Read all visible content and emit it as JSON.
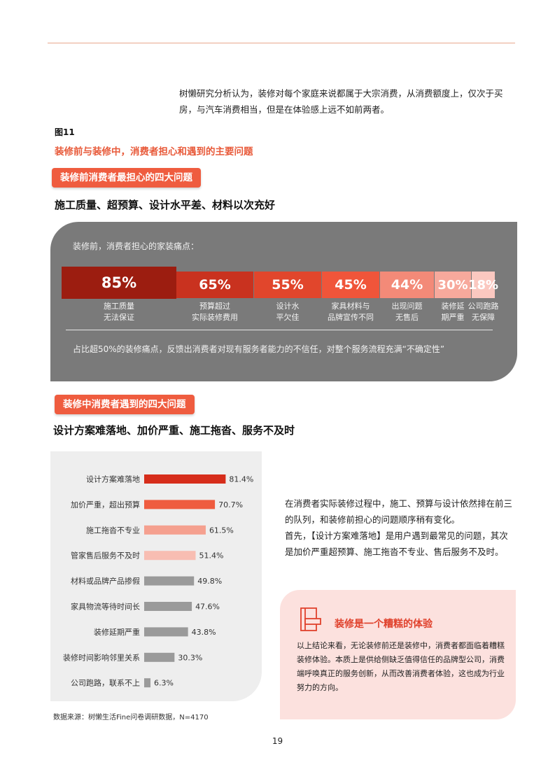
{
  "intro": "树懒研究分析认为，装修对每个家庭来说都属于大宗消费，从消费额度上，仅次于买房，与汽车消费相当，但是在体验感上远不如前两者。",
  "figure": {
    "label": "图11",
    "title": "装修前与装修中，消费者担心和遇到的主要问题"
  },
  "section1": {
    "tag": "装修前消费者最担心的四大问题",
    "heading": "施工质量、超预算、设计水平差、材料以次充好",
    "panel_label": "装修前，消费者担心的家装痛点：",
    "segments": [
      {
        "pct": "85%",
        "value": 85,
        "caption": [
          "施工质量",
          "无法保证"
        ],
        "color": "#9c1d10"
      },
      {
        "pct": "65%",
        "value": 65,
        "caption": [
          "预算超过",
          "实际装修费用"
        ],
        "color": "#c9321f"
      },
      {
        "pct": "55%",
        "value": 55,
        "caption": [
          "设计水",
          "平欠佳"
        ],
        "color": "#e1462c"
      },
      {
        "pct": "45%",
        "value": 45,
        "caption": [
          "家具材料与",
          "品牌宣传不同"
        ],
        "color": "#f0553a"
      },
      {
        "pct": "44%",
        "value": 44,
        "caption": [
          "出现问题",
          "无售后"
        ],
        "color": "#f38a78"
      },
      {
        "pct": "30%",
        "value": 30,
        "caption": [
          "装修延",
          "期严重"
        ],
        "color": "#f7a99c"
      },
      {
        "pct": "18%",
        "value": 18,
        "caption": [
          "公司跑路",
          "无保障"
        ],
        "color": "#fbc8c0"
      }
    ],
    "note": "占比超50%的装修痛点，反馈出消费者对现有服务者能力的不信任，对整个服务流程充满“不确定性”"
  },
  "section2": {
    "tag": "装修中消费者遇到的四大问题",
    "heading": "设计方案难落地、加价严重、施工拖沓、服务不及时",
    "chart_data": {
      "type": "bar",
      "orientation": "horizontal",
      "categories": [
        "设计方案难落地",
        "加价严重，超出预算",
        "施工拖沓不专业",
        "管家售后服务不及时",
        "材料或品牌产品掺假",
        "家具物流等待时间长",
        "装修延期严重",
        "装修时间影响邻里关系",
        "公司跑路，联系不上"
      ],
      "values": [
        81.4,
        70.7,
        61.5,
        51.4,
        49.8,
        47.6,
        43.8,
        30.3,
        6.3
      ],
      "labels": [
        "81.4%",
        "70.7%",
        "61.5%",
        "51.4%",
        "49.8%",
        "47.6%",
        "43.8%",
        "30.3%",
        "6.3%"
      ],
      "colors": [
        "#d62d1b",
        "#ef5c3f",
        "#f5a08f",
        "#f8bdb2",
        "#9a9a9a",
        "#9a9a9a",
        "#9a9a9a",
        "#9a9a9a",
        "#9a9a9a"
      ]
    },
    "right_text": [
      "在消费者实际装修过程中，施工、预算与设计依然排在前三的队列，和装修前担心的问题顺序稍有变化。",
      "首先，【设计方案难落地】是用户遇到最常见的问题，其次是加价严重超预算、施工拖沓不专业、售后服务不及时。"
    ],
    "callout": {
      "icon": "document-icon",
      "title": "装修是一个糟糕的体验",
      "body": "以上结论来看，无论装修前还是装修中，消费者都面临着糟糕装修体验。本质上是供给侧缺乏值得信任的品牌型公司，消费端呼唤真正的服务创新，从而改善消费者体验，这也成为行业努力的方向。"
    }
  },
  "source": "数据来源：树懒生活Fine问卷调研数据，N=4170",
  "page_number": "19"
}
